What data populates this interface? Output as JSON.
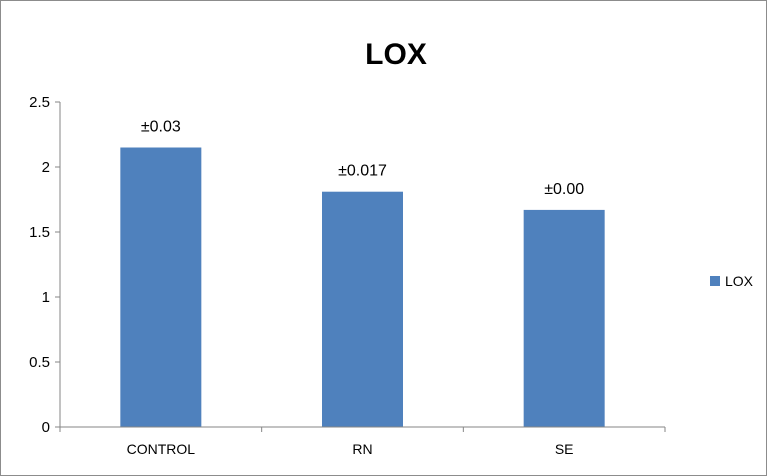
{
  "chart_data": {
    "type": "bar",
    "title": "LOX",
    "categories": [
      "CONTROL",
      "RN",
      "SE"
    ],
    "series": [
      {
        "name": "LOX",
        "values": [
          2.15,
          1.81,
          1.67
        ],
        "color": "#4f81bd"
      }
    ],
    "data_labels": [
      "±0.03",
      "±0.017",
      "±0.00"
    ],
    "yticks": [
      "0",
      "0.5",
      "1",
      "1.5",
      "2",
      "2.5"
    ],
    "ylim": [
      0,
      2.5
    ],
    "grid": false,
    "legend_position": "right"
  }
}
